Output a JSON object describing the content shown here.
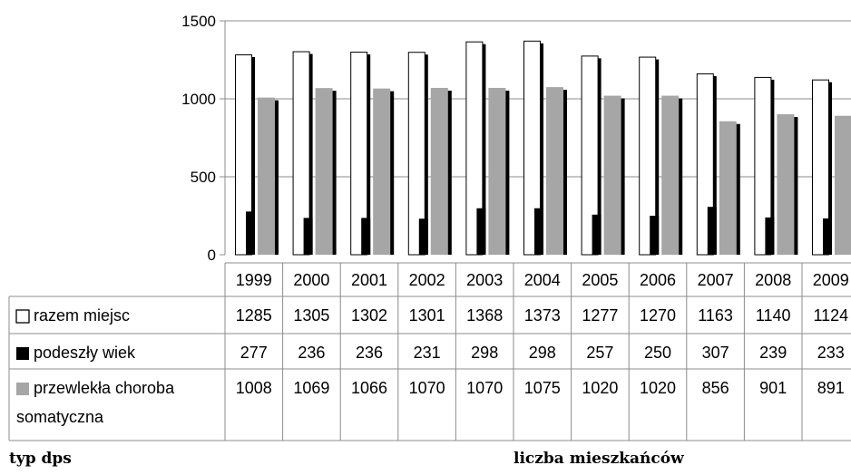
{
  "chart_data": {
    "type": "bar",
    "categories": [
      "1999",
      "2000",
      "2001",
      "2002",
      "2003",
      "2004",
      "2005",
      "2006",
      "2007",
      "2008",
      "2009"
    ],
    "series": [
      {
        "name": "razem miejsc",
        "values": [
          1285,
          1305,
          1302,
          1301,
          1368,
          1373,
          1277,
          1270,
          1163,
          1140,
          1124
        ],
        "color": "#ffffff",
        "stroke": "#000000"
      },
      {
        "name": "podeszły wiek",
        "values": [
          277,
          236,
          236,
          231,
          298,
          298,
          257,
          250,
          307,
          239,
          233
        ],
        "color": "#000000"
      },
      {
        "name": "przewlekła choroba somatyczna",
        "values": [
          1008,
          1069,
          1066,
          1070,
          1070,
          1075,
          1020,
          1020,
          856,
          901,
          891
        ],
        "color": "#a6a6a6"
      }
    ],
    "legend_label_lines": [
      [
        "razem miejsc"
      ],
      [
        "podeszły wiek"
      ],
      [
        "przewlekła choroba",
        "somatyczna"
      ]
    ],
    "y_ticks": [
      "0",
      "500",
      "1000",
      "1500"
    ],
    "ylim": [
      0,
      1500
    ],
    "grid": true,
    "legend": "data-table"
  },
  "footer": {
    "left": "typ dps",
    "right": "liczba mieszkańców"
  }
}
